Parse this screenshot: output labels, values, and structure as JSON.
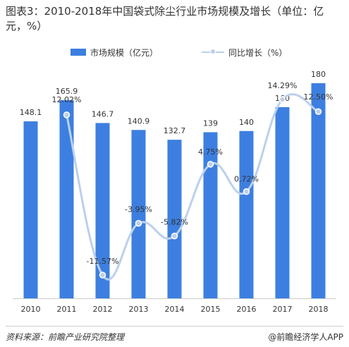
{
  "title": "图表3：2010-2018年中国袋式除尘行业市场规模及增长（单位：亿元，%）",
  "legend": {
    "bar_label": "市场规模（亿元）",
    "line_label": "同比增长（%）"
  },
  "footer": {
    "source": "资料来源：前瞻产业研究院整理",
    "brand": "@前瞻经济学人APP"
  },
  "colors": {
    "bar": "#3d7fe0",
    "line": "#bcd0ec",
    "text": "#333333"
  },
  "chart_data": {
    "type": "bar",
    "categories": [
      "2010",
      "2011",
      "2012",
      "2013",
      "2014",
      "2015",
      "2016",
      "2017",
      "2018"
    ],
    "series": [
      {
        "name": "市场规模（亿元）",
        "type": "bar",
        "values": [
          148.1,
          165.9,
          146.7,
          140.9,
          132.7,
          139,
          140,
          160,
          180
        ],
        "labels": [
          "148.1",
          "165.9",
          "146.7",
          "140.9",
          "132.7",
          "139",
          "140",
          "160",
          "180"
        ]
      },
      {
        "name": "同比增长（%）",
        "type": "line",
        "smooth": true,
        "values": [
          null,
          12.02,
          -11.57,
          -3.95,
          -5.82,
          4.75,
          0.72,
          14.29,
          12.5
        ],
        "labels": [
          "",
          "12.02%",
          "-11.57%",
          "-3.95%",
          "-5.82%",
          "4.75%",
          "0.72%",
          "14.29%",
          "12.50%"
        ]
      }
    ],
    "bar_ylim": [
      0,
      180
    ],
    "line_ylim": [
      -11.57,
      14.29
    ],
    "legend_position": "top",
    "grid": false
  }
}
